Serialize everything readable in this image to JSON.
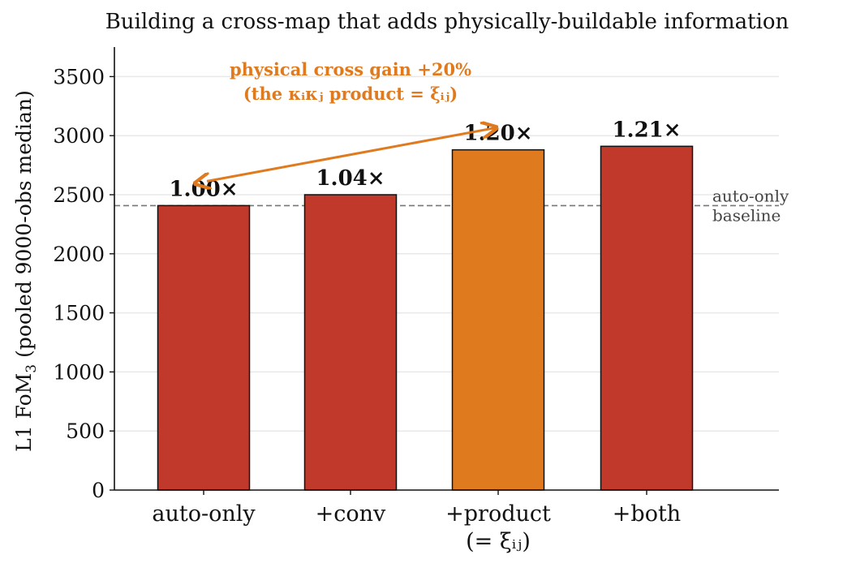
{
  "chart_data": {
    "type": "bar",
    "title": "Building a cross-map that adds physically-buildable information",
    "ylabel": "L1 FoM",
    "ylabel_sub": "3",
    "ylabel_suffix": "(pooled 9000-obs median)",
    "ylim": [
      0,
      3750
    ],
    "yticks": [
      0,
      500,
      1000,
      1500,
      2000,
      2500,
      3000,
      3500
    ],
    "grid": true,
    "categories": [
      "auto-only",
      "+conv",
      "+product",
      "+both"
    ],
    "category_sublabels": [
      "",
      "",
      "(= ξᵢⱼ)",
      ""
    ],
    "values": [
      2408,
      2500,
      2880,
      2910
    ],
    "ratio_labels": [
      "1.00×",
      "1.04×",
      "1.20×",
      "1.21×"
    ],
    "colors": [
      "#c0392b",
      "#c0392b",
      "#e07a1f",
      "#c0392b"
    ],
    "baseline": {
      "value": 2408,
      "label_line1": "auto-only",
      "label_line2": "baseline",
      "color": "#777777"
    },
    "annotation": {
      "line1": "physical cross gain +20%",
      "line2": "(the κᵢκⱼ product = ξᵢⱼ)",
      "color": "#e07a1f",
      "from_category": "auto-only",
      "to_category": "+product"
    }
  }
}
